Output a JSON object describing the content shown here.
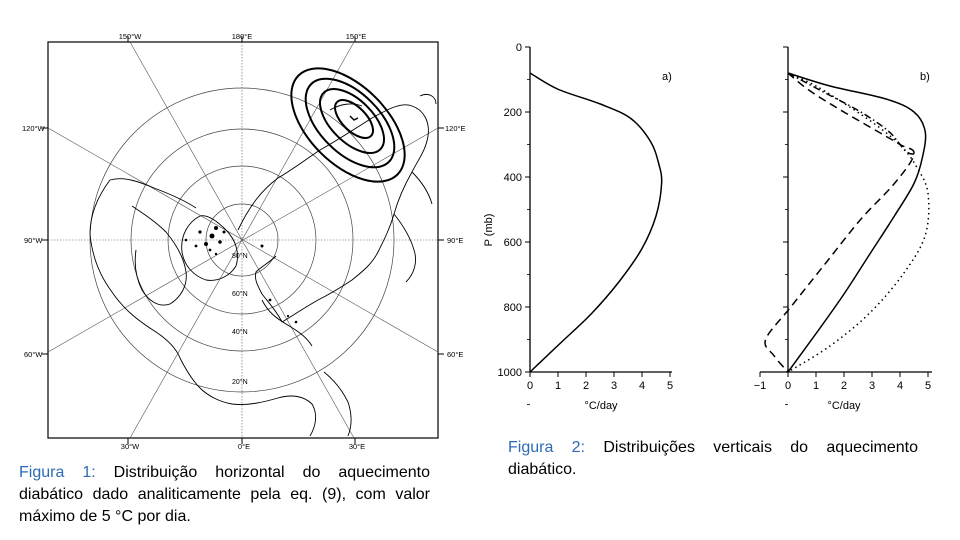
{
  "captions": {
    "fig1_label": "Figura 1:",
    "fig1_text": "Distribuição horizontal do aquecimento diabático dado analiticamente pela eq. (9), com valor máximo de 5 °C por dia.",
    "fig2_label": "Figura 2:",
    "fig2_text": "Distribuições verticais do aquecimento diabático."
  },
  "map": {
    "top_labels": [
      "150°W",
      "180°E",
      "150°E"
    ],
    "bottom_labels": [
      "30°W",
      "0°E",
      "30°E"
    ],
    "left_labels": [
      "120°W",
      "90°W",
      "60°W"
    ],
    "right_labels": [
      "120°E",
      "90°E",
      "60°E"
    ],
    "lat_labels": [
      "80°N",
      "60°N",
      "40°N",
      "20°N"
    ]
  },
  "chart_data": [
    {
      "type": "line",
      "panel_label": "a)",
      "ylabel": "P (mb)",
      "xlabel": "°C/day",
      "ylim": [
        0,
        1000
      ],
      "y_inverted": true,
      "xlim": [
        0,
        5
      ],
      "xticks": [
        0,
        1,
        2,
        3,
        4,
        5
      ],
      "yticks": [
        0,
        200,
        400,
        600,
        800,
        1000
      ],
      "series": [
        {
          "style": "solid",
          "points": [
            [
              0,
              80
            ],
            [
              1.0,
              130
            ],
            [
              2.5,
              175
            ],
            [
              3.6,
              220
            ],
            [
              4.3,
              290
            ],
            [
              4.6,
              360
            ],
            [
              4.7,
              420
            ],
            [
              4.5,
              520
            ],
            [
              4.0,
              620
            ],
            [
              3.2,
              720
            ],
            [
              2.2,
              820
            ],
            [
              1.1,
              910
            ],
            [
              0,
              1000
            ]
          ]
        }
      ]
    },
    {
      "type": "line",
      "panel_label": "b)",
      "xlabel": "°C/day",
      "ylim": [
        0,
        1000
      ],
      "y_inverted": true,
      "xlim": [
        -1,
        5
      ],
      "xticks": [
        -1,
        0,
        1,
        2,
        3,
        4,
        5
      ],
      "series": [
        {
          "style": "solid",
          "points": [
            [
              0,
              80
            ],
            [
              1.5,
              120
            ],
            [
              3.5,
              160
            ],
            [
              4.5,
              200
            ],
            [
              4.9,
              260
            ],
            [
              4.8,
              340
            ],
            [
              4.5,
              420
            ],
            [
              3.8,
              520
            ],
            [
              2.9,
              640
            ],
            [
              2.0,
              760
            ],
            [
              1.1,
              870
            ],
            [
              0,
              1000
            ]
          ]
        },
        {
          "style": "dashed",
          "points": [
            [
              0,
              80
            ],
            [
              0.7,
              130
            ],
            [
              1.8,
              190
            ],
            [
              3.0,
              250
            ],
            [
              4.0,
              300
            ],
            [
              4.5,
              330
            ],
            [
              3.8,
              420
            ],
            [
              2.6,
              530
            ],
            [
              1.3,
              670
            ],
            [
              0.1,
              800
            ],
            [
              -0.8,
              900
            ],
            [
              -0.5,
              950
            ],
            [
              0,
              1000
            ]
          ]
        },
        {
          "style": "dotted",
          "points": [
            [
              0,
              80
            ],
            [
              1.0,
              120
            ],
            [
              2.3,
              190
            ],
            [
              3.3,
              250
            ],
            [
              4.1,
              310
            ],
            [
              4.6,
              370
            ],
            [
              5.0,
              450
            ],
            [
              4.9,
              580
            ],
            [
              4.1,
              700
            ],
            [
              2.9,
              820
            ],
            [
              1.5,
              920
            ],
            [
              0,
              1000
            ]
          ]
        },
        {
          "style": "dashdot",
          "points": [
            [
              0,
              80
            ],
            [
              1.3,
              140
            ],
            [
              2.6,
              200
            ],
            [
              3.6,
              260
            ],
            [
              4.2,
              320
            ],
            [
              4.5,
              330
            ]
          ]
        }
      ]
    }
  ]
}
